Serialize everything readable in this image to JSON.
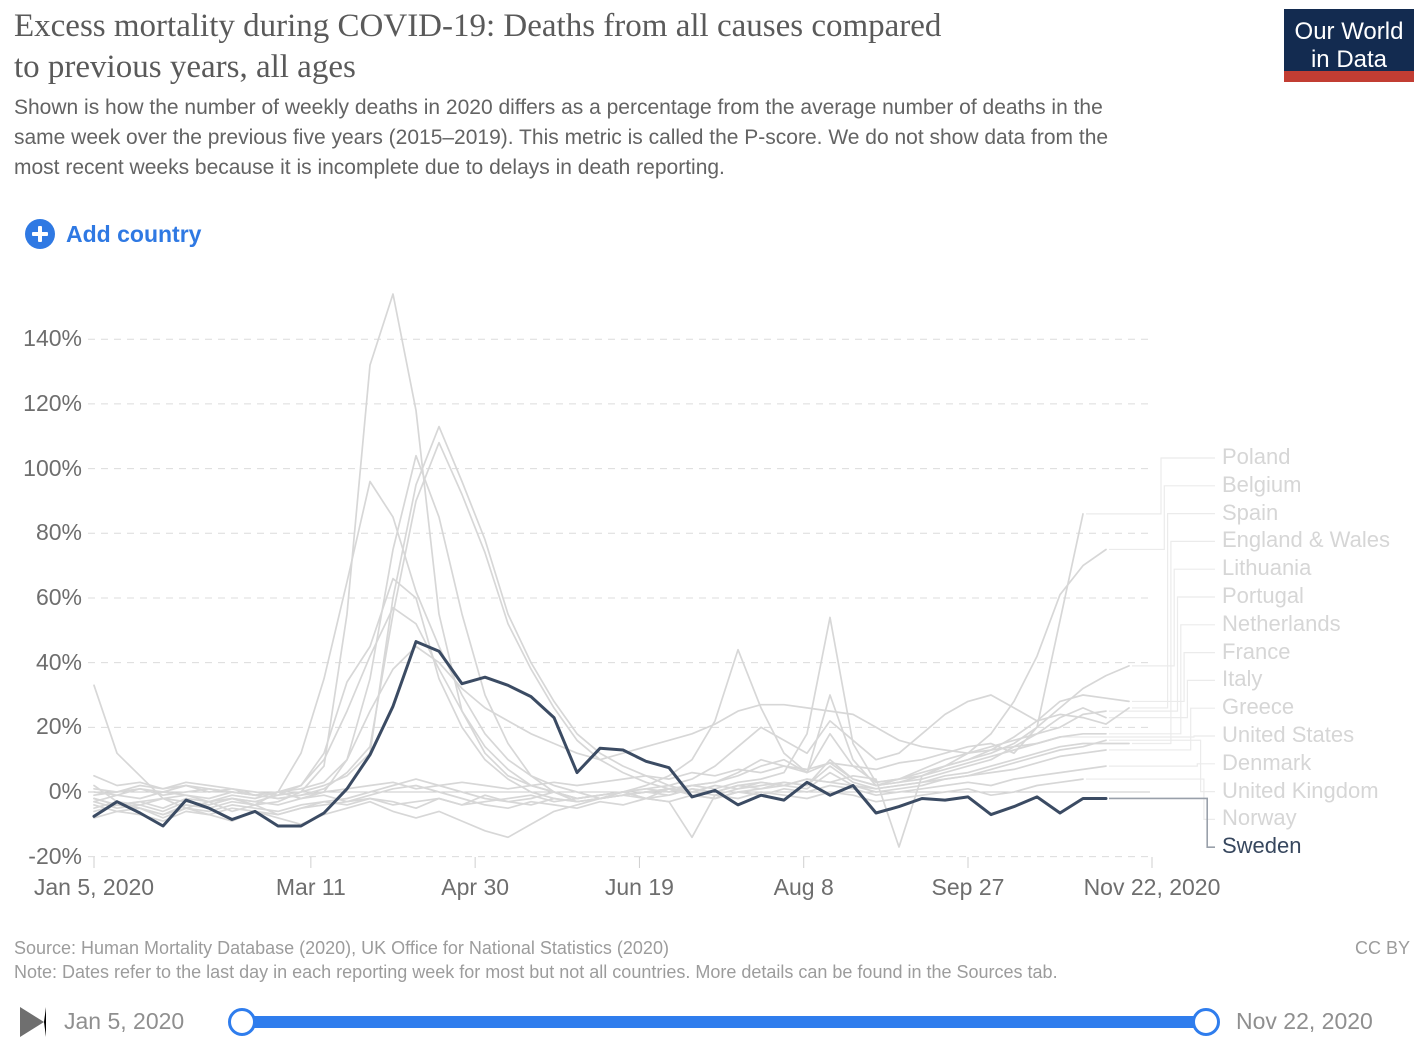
{
  "header": {
    "title_lines": [
      "Excess mortality during COVID-19: Deaths from all causes compared",
      "to previous years, all ages"
    ],
    "subtitle_lines": [
      "Shown is how the number of weekly deaths in 2020 differs as a percentage from the average number of deaths in the",
      "same week over the previous five years (2015–2019). This metric is called the P-score. We do not show data from the",
      "most recent weeks because it is incomplete due to delays in death reporting."
    ],
    "logo": {
      "line1": "Our World",
      "line2": "in Data",
      "bg": "#132b50",
      "stripe": "#c23d33"
    }
  },
  "toolbar": {
    "add_country_label": "Add country"
  },
  "legend": {
    "items": [
      "Poland",
      "Belgium",
      "Spain",
      "England & Wales",
      "Lithuania",
      "Portugal",
      "Netherlands",
      "France",
      "Italy",
      "Greece",
      "United States",
      "Denmark",
      "United Kingdom",
      "Norway",
      "Sweden"
    ],
    "focused": "Sweden",
    "grey_color": "#d6d6d6",
    "focused_color": "#37475e"
  },
  "chart_data": {
    "type": "line",
    "title": "Excess mortality during COVID-19: Deaths from all causes compared to previous years, all ages",
    "unit": "%",
    "x_start_date": "Jan 5, 2020",
    "x_step_days": 7,
    "x_tick_labels": [
      "Jan 5, 2020",
      "Mar 11",
      "Apr 30",
      "Jun 19",
      "Aug 8",
      "Sep 27",
      "Nov 22, 2020"
    ],
    "x_tick_days": [
      0,
      66,
      116,
      166,
      216,
      266,
      322
    ],
    "y_ticks": [
      -20,
      0,
      20,
      40,
      60,
      80,
      100,
      120,
      140
    ],
    "ylim": [
      -24,
      156
    ],
    "grid": true,
    "legend_position": "right",
    "focused_series": "Sweden",
    "focused_color": "#3b4b63",
    "unfocused_color": "#d7d7d7",
    "series": [
      {
        "name": "Poland",
        "values": [
          -3,
          -1,
          -2,
          0,
          -1,
          -2,
          0,
          -1,
          -2,
          -1,
          0,
          1,
          2,
          3,
          1,
          2,
          3,
          2,
          1,
          2,
          3,
          2,
          3,
          4,
          5,
          4,
          6,
          5,
          7,
          6,
          8,
          7,
          9,
          8,
          7,
          9,
          10,
          12,
          14,
          15,
          12,
          20,
          53,
          86
        ]
      },
      {
        "name": "Belgium",
        "values": [
          -5,
          -3,
          -4,
          -2,
          -3,
          -4,
          -2,
          -3,
          -4,
          -2,
          0,
          10,
          35,
          75,
          104,
          85,
          55,
          30,
          15,
          5,
          0,
          -3,
          -2,
          -1,
          0,
          1,
          2,
          3,
          5,
          8,
          10,
          6,
          30,
          10,
          2,
          3,
          5,
          8,
          12,
          18,
          28,
          42,
          61,
          70,
          75
        ]
      },
      {
        "name": "Spain",
        "values": [
          -2,
          -4,
          -3,
          -2,
          -1,
          -3,
          -2,
          -4,
          -3,
          0,
          8,
          55,
          132,
          154,
          118,
          55,
          25,
          12,
          5,
          2,
          0,
          -2,
          -1,
          0,
          1,
          2,
          4,
          8,
          14,
          20,
          16,
          12,
          22,
          16,
          10,
          12,
          18,
          24,
          28,
          30,
          26,
          22,
          24,
          23,
          21,
          26
        ]
      },
      {
        "name": "England & Wales",
        "values": [
          1,
          0,
          2,
          1,
          3,
          2,
          1,
          0,
          -1,
          0,
          2,
          5,
          12,
          60,
          95,
          113,
          96,
          78,
          55,
          40,
          28,
          18,
          12,
          8,
          5,
          2,
          0,
          -1,
          1,
          2,
          3,
          2,
          8,
          3,
          1,
          2,
          3,
          5,
          6,
          8,
          10,
          12,
          14,
          15,
          15,
          15
        ]
      },
      {
        "name": "Lithuania",
        "values": [
          33,
          12,
          5,
          -2,
          -5,
          -3,
          -6,
          -4,
          -7,
          -5,
          -3,
          -4,
          -2,
          -3,
          -5,
          -2,
          -4,
          -1,
          -3,
          -2,
          0,
          -2,
          -1,
          0,
          -2,
          1,
          0,
          2,
          1,
          3,
          2,
          4,
          3,
          5,
          4,
          -17,
          5,
          8,
          10,
          12,
          15,
          20,
          26,
          32,
          36,
          39
        ]
      },
      {
        "name": "Portugal",
        "values": [
          2,
          -3,
          -5,
          -8,
          -5,
          -7,
          -9,
          -6,
          -8,
          -10,
          -7,
          -5,
          -3,
          -6,
          -8,
          -6,
          -9,
          -12,
          -14,
          -10,
          -6,
          -4,
          -2,
          0,
          2,
          5,
          10,
          22,
          44,
          26,
          12,
          6,
          9,
          4,
          2,
          4,
          7,
          10,
          12,
          14,
          16,
          18,
          20,
          24,
          25
        ]
      },
      {
        "name": "Netherlands",
        "values": [
          -2,
          -4,
          -3,
          -5,
          -2,
          -3,
          -1,
          -2,
          0,
          2,
          10,
          25,
          42,
          57,
          52,
          38,
          25,
          14,
          7,
          2,
          0,
          -2,
          -1,
          0,
          1,
          0,
          2,
          1,
          3,
          4,
          6,
          18,
          54,
          15,
          3,
          4,
          5,
          7,
          9,
          11,
          13,
          15,
          17,
          18,
          18
        ]
      },
      {
        "name": "France",
        "values": [
          -3,
          -5,
          -4,
          -6,
          -3,
          -4,
          -2,
          -3,
          -1,
          2,
          12,
          34,
          45,
          66,
          60,
          35,
          20,
          10,
          4,
          0,
          -2,
          -3,
          -2,
          -1,
          0,
          1,
          2,
          3,
          6,
          10,
          8,
          6,
          18,
          8,
          3,
          4,
          6,
          8,
          10,
          13,
          17,
          22,
          28,
          30,
          29,
          28
        ]
      },
      {
        "name": "Italy",
        "values": [
          -4,
          -6,
          -5,
          -7,
          -4,
          -5,
          -3,
          -4,
          0,
          12,
          35,
          65,
          96,
          85,
          62,
          45,
          30,
          18,
          10,
          5,
          2,
          0,
          -2,
          -1,
          0,
          -1,
          1,
          0,
          2,
          1,
          3,
          2,
          10,
          4,
          2,
          3,
          4,
          6,
          8,
          10,
          14,
          18,
          23,
          26,
          23
        ]
      },
      {
        "name": "Greece",
        "values": [
          5,
          2,
          3,
          1,
          2,
          0,
          1,
          -1,
          0,
          -2,
          -1,
          -3,
          -2,
          -4,
          -3,
          -2,
          -4,
          -3,
          -2,
          -1,
          -3,
          -2,
          -1,
          0,
          -2,
          -1,
          1,
          0,
          2,
          3,
          2,
          4,
          3,
          2,
          1,
          2,
          3,
          4,
          5,
          6,
          7,
          9,
          11,
          12,
          13
        ]
      },
      {
        "name": "United States",
        "values": [
          -1,
          0,
          1,
          -1,
          0,
          1,
          0,
          -1,
          0,
          1,
          3,
          10,
          25,
          38,
          45,
          40,
          32,
          26,
          22,
          18,
          15,
          12,
          10,
          12,
          14,
          16,
          18,
          21,
          25,
          27,
          27,
          26,
          25,
          24,
          20,
          16,
          14,
          13,
          12,
          13,
          14,
          15,
          17
        ]
      },
      {
        "name": "Denmark",
        "values": [
          -6,
          -4,
          -5,
          -7,
          -5,
          -6,
          -4,
          -5,
          -6,
          -4,
          -3,
          -2,
          0,
          2,
          4,
          2,
          0,
          -2,
          -3,
          -4,
          -2,
          -3,
          -2,
          -1,
          -2,
          -3,
          -1,
          -2,
          0,
          -1,
          1,
          0,
          2,
          1,
          -1,
          0,
          1,
          2,
          3,
          2,
          4,
          5,
          6,
          7,
          8
        ]
      },
      {
        "name": "United Kingdom",
        "values": [
          0,
          -1,
          1,
          0,
          2,
          1,
          0,
          -1,
          -2,
          -1,
          1,
          6,
          14,
          55,
          90,
          108,
          92,
          74,
          52,
          38,
          26,
          16,
          10,
          6,
          3,
          1,
          -1,
          -2,
          0,
          1,
          2,
          1,
          6,
          2,
          0,
          1,
          2,
          4,
          5,
          7,
          9,
          11,
          13,
          14,
          16
        ]
      },
      {
        "name": "Norway",
        "values": [
          -8,
          -6,
          -7,
          -9,
          -6,
          -7,
          -5,
          -6,
          -7,
          -5,
          -4,
          -3,
          -1,
          1,
          2,
          0,
          -2,
          -4,
          -5,
          -3,
          -4,
          -5,
          -3,
          -4,
          -2,
          -3,
          -14,
          -1,
          -2,
          0,
          -1,
          -2,
          0,
          -1,
          -3,
          -2,
          -1,
          0,
          1,
          -1,
          0,
          2,
          3,
          4
        ]
      },
      {
        "name": "Sweden",
        "values": [
          -7.5,
          -3,
          -6.5,
          -10.5,
          -2.5,
          -5,
          -8.5,
          -6,
          -10.5,
          -10.5,
          -6.5,
          1,
          11.5,
          26.5,
          46.5,
          43.5,
          33.5,
          35.5,
          33,
          29.5,
          23,
          6,
          13.5,
          13,
          9.5,
          7.5,
          -1.5,
          0.5,
          -4,
          -1,
          -2.5,
          3,
          -1,
          2,
          -6.5,
          -4.5,
          -2,
          -2.5,
          -1.5,
          -7,
          -4.5,
          -1.5,
          -6.5,
          -2,
          -2
        ]
      }
    ]
  },
  "footer": {
    "source": "Source: Human Mortality Database (2020), UK Office for National Statistics (2020)",
    "license": "CC BY",
    "note": "Note: Dates refer to the last day in each reporting week for most but not all countries. More details can be found in the Sources tab."
  },
  "timeline": {
    "start_label": "Jan 5, 2020",
    "end_label": "Nov 22, 2020",
    "track_color": "#2f7ded"
  }
}
